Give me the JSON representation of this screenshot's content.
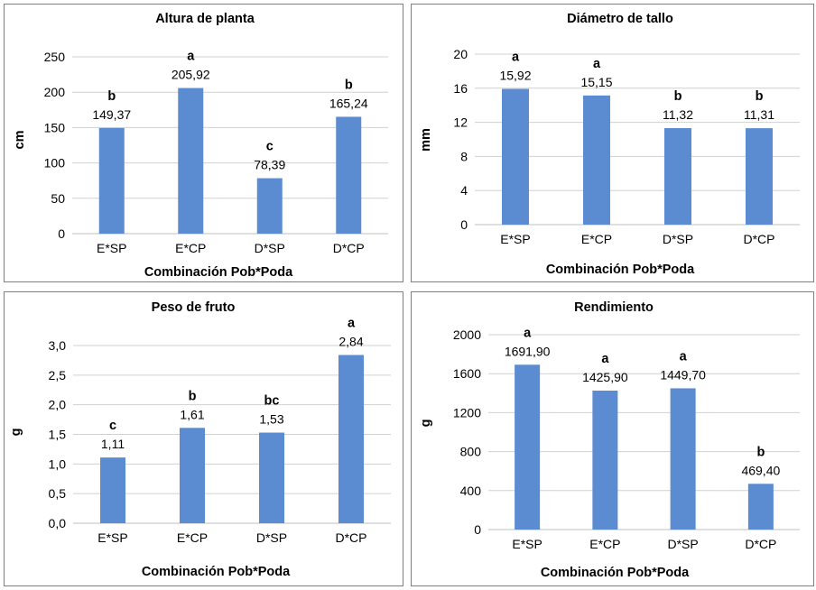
{
  "colors": {
    "bar": "#5b8bd0",
    "grid": "#d0d0d0",
    "border": "#7f7f7f"
  },
  "chart_data": [
    {
      "type": "bar",
      "title": "Altura de planta",
      "xlabel": "Combinación Pob*Poda",
      "ylabel": "cm",
      "categories": [
        "E*SP",
        "E*CP",
        "D*SP",
        "D*CP"
      ],
      "values": [
        149.37,
        205.92,
        78.39,
        165.24
      ],
      "data_labels": [
        "149,37",
        "205,92",
        "78,39",
        "165,24"
      ],
      "letters": [
        "b",
        "a",
        "c",
        "b"
      ],
      "ylim": [
        0,
        250
      ],
      "yticks": [
        "0",
        "50",
        "100",
        "150",
        "200",
        "250"
      ],
      "grid": true
    },
    {
      "type": "bar",
      "title": "Diámetro de tallo",
      "xlabel": "Combinación Pob*Poda",
      "ylabel": "mm",
      "categories": [
        "E*SP",
        "E*CP",
        "D*SP",
        "D*CP"
      ],
      "values": [
        15.92,
        15.15,
        11.32,
        11.31
      ],
      "data_labels": [
        "15,92",
        "15,15",
        "11,32",
        "11,31"
      ],
      "letters": [
        "a",
        "a",
        "b",
        "b"
      ],
      "ylim": [
        0,
        20
      ],
      "yticks": [
        "0",
        "4",
        "8",
        "12",
        "16",
        "20"
      ],
      "grid": true
    },
    {
      "type": "bar",
      "title": "Peso de fruto",
      "xlabel": "Combinación Pob*Poda",
      "ylabel": "g",
      "categories": [
        "E*SP",
        "E*CP",
        "D*SP",
        "D*CP"
      ],
      "values": [
        1.11,
        1.61,
        1.53,
        2.84
      ],
      "data_labels": [
        "1,11",
        "1,61",
        "1,53",
        "2,84"
      ],
      "letters": [
        "c",
        "b",
        "bc",
        "a"
      ],
      "ylim": [
        0,
        3
      ],
      "yticks": [
        "0,0",
        "0,5",
        "1,0",
        "1,5",
        "2,0",
        "2,5",
        "3,0"
      ],
      "grid": true
    },
    {
      "type": "bar",
      "title": "Rendimiento",
      "xlabel": "Combinación Pob*Poda",
      "ylabel": "g",
      "categories": [
        "E*SP",
        "E*CP",
        "D*SP",
        "D*CP"
      ],
      "values": [
        1691.9,
        1425.9,
        1449.7,
        469.4
      ],
      "data_labels": [
        "1691,90",
        "1425,90",
        "1449,70",
        "469,40"
      ],
      "letters": [
        "a",
        "a",
        "a",
        "b"
      ],
      "ylim": [
        0,
        2000
      ],
      "yticks": [
        "0",
        "400",
        "800",
        "1200",
        "1600",
        "2000"
      ],
      "grid": true
    }
  ]
}
